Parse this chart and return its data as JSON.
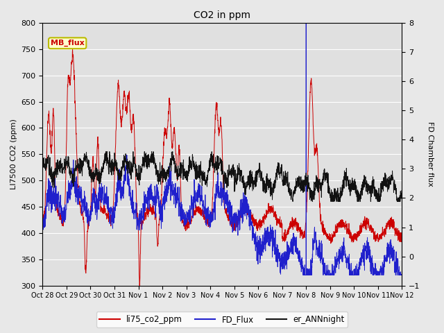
{
  "title": "CO2 in ppm",
  "ylabel_left": "LI7500 CO2 (ppm)",
  "ylabel_right": "FD Chamber flux",
  "ylim_left": [
    300,
    800
  ],
  "ylim_right": [
    -1.0,
    8.0
  ],
  "yticks_left": [
    300,
    350,
    400,
    450,
    500,
    550,
    600,
    650,
    700,
    750,
    800
  ],
  "yticks_right": [
    -1.0,
    0.0,
    1.0,
    2.0,
    3.0,
    4.0,
    5.0,
    6.0,
    7.0,
    8.0
  ],
  "xtick_labels": [
    "Oct 28",
    "Oct 29",
    "Oct 30",
    "Oct 31",
    "Nov 1",
    "Nov 2",
    "Nov 3",
    "Nov 4",
    "Nov 5",
    "Nov 6",
    "Nov 7",
    "Nov 8",
    "Nov 9",
    "Nov 10",
    "Nov 11",
    "Nov 12"
  ],
  "n_days": 15,
  "fig_bg": "#e8e8e8",
  "plot_bg": "#e0e0e0",
  "grid_color": "#ffffff",
  "line_colors": {
    "li75": "#cc0000",
    "fd_flux": "#2020cc",
    "ann": "#111111"
  },
  "legend_entries": [
    "li75_co2_ppm",
    "FD_Flux",
    "er_ANNnight"
  ],
  "annotation_text": "MB_flux",
  "annotation_color": "#cc0000",
  "annotation_bg": "#ffffcc",
  "annotation_border": "#bbbb00"
}
